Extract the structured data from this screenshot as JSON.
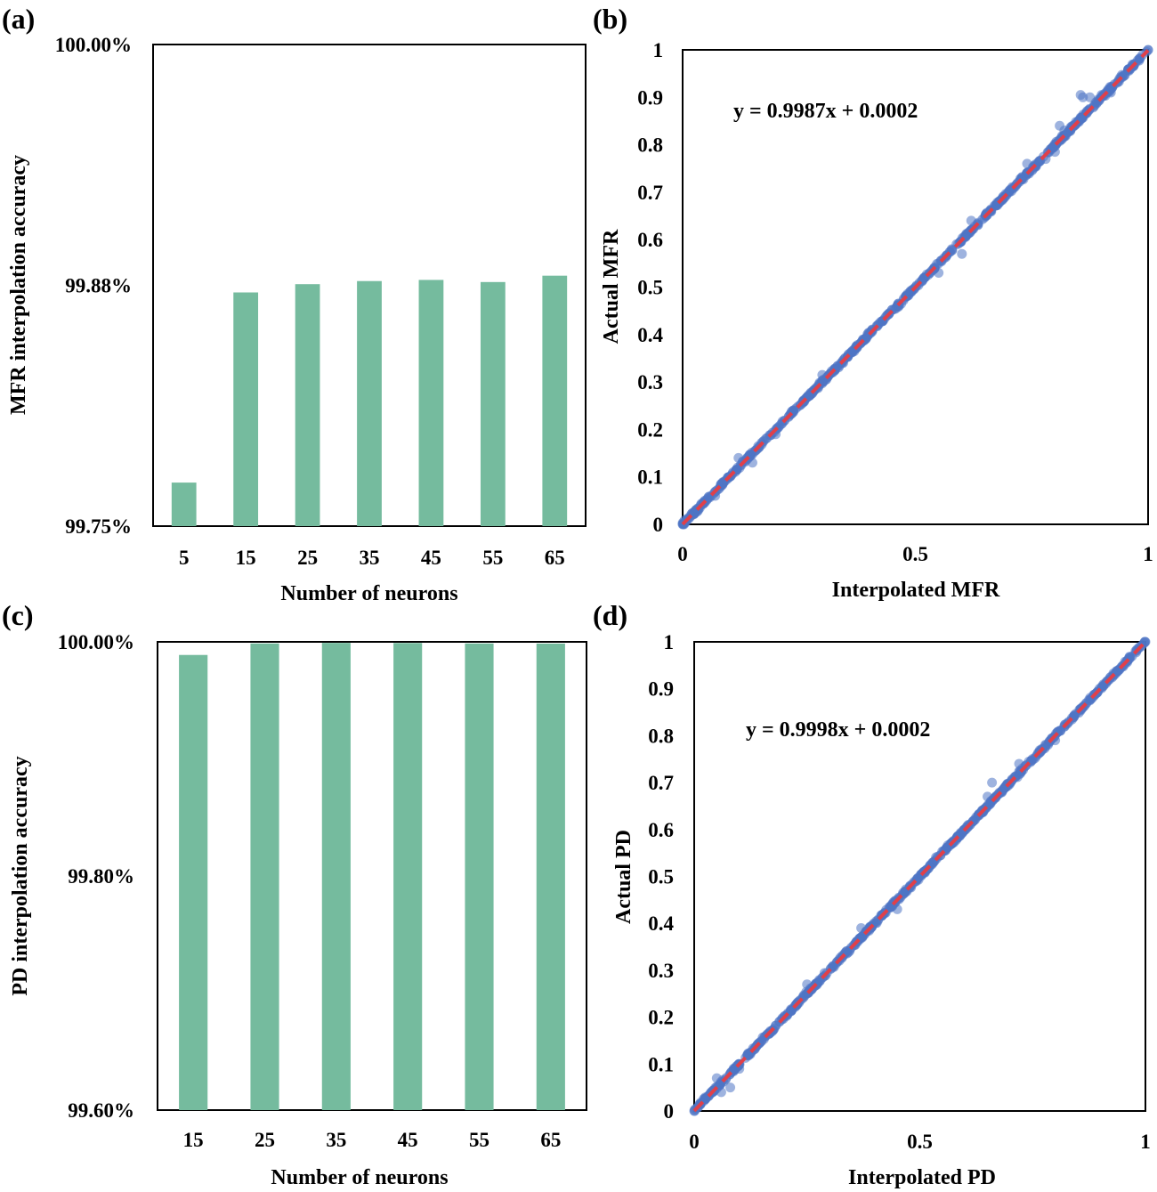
{
  "chart_data": [
    {
      "panel": "(a)",
      "type": "bar",
      "categories": [
        "5",
        "15",
        "25",
        "35",
        "45",
        "55",
        "65"
      ],
      "values": [
        99.7726,
        99.8713,
        99.8756,
        99.8772,
        99.8778,
        99.8767,
        99.88
      ],
      "ylim": [
        99.75,
        100.0
      ],
      "yticks": [
        "99.75%",
        "99.88%",
        "100.00%"
      ],
      "ytick_values": [
        99.75,
        99.875,
        100.0
      ],
      "xlabel": "Number of neurons",
      "ylabel": "MFR interpolation accuracy",
      "color": "#75bb9e"
    },
    {
      "panel": "(b)",
      "type": "scatter",
      "xlabel": "Interpolated MFR",
      "ylabel": "Actual MFR",
      "xlim": [
        0,
        1
      ],
      "ylim": [
        0,
        1
      ],
      "xticks": [
        "0",
        "0.5",
        "1"
      ],
      "xtick_values": [
        0,
        0.5,
        1
      ],
      "yticks": [
        "0",
        "0.1",
        "0.2",
        "0.3",
        "0.4",
        "0.5",
        "0.6",
        "0.7",
        "0.8",
        "0.9",
        "1"
      ],
      "ytick_values": [
        0,
        0.1,
        0.2,
        0.3,
        0.4,
        0.5,
        0.6,
        0.7,
        0.8,
        0.9,
        1
      ],
      "equation": "y = 0.9987x + 0.0002",
      "slope": 0.9987,
      "intercept": 0.0002,
      "n_points": 620,
      "noise": 0.006,
      "outliers": [
        [
          0.855,
          0.905
        ],
        [
          0.86,
          0.9
        ],
        [
          0.875,
          0.9
        ],
        [
          0.9,
          0.905
        ],
        [
          0.92,
          0.91
        ],
        [
          0.82,
          0.83
        ],
        [
          0.81,
          0.84
        ],
        [
          0.78,
          0.77
        ],
        [
          0.8,
          0.785
        ],
        [
          0.72,
          0.72
        ],
        [
          0.74,
          0.76
        ],
        [
          0.6,
          0.57
        ],
        [
          0.62,
          0.64
        ],
        [
          0.55,
          0.53
        ],
        [
          0.3,
          0.315
        ],
        [
          0.2,
          0.19
        ],
        [
          0.12,
          0.14
        ],
        [
          0.15,
          0.13
        ],
        [
          0.07,
          0.06
        ]
      ],
      "point_color": "#4f74c4",
      "line_color": "#e0404a"
    },
    {
      "panel": "(c)",
      "type": "bar",
      "categories": [
        "15",
        "25",
        "35",
        "45",
        "55",
        "65"
      ],
      "values": [
        99.9888,
        99.9986,
        99.9991,
        99.999,
        99.9986,
        99.9985
      ],
      "ylim": [
        99.6,
        100.0
      ],
      "yticks": [
        "99.60%",
        "99.80%",
        "100.00%"
      ],
      "ytick_values": [
        99.6,
        99.8,
        100.0
      ],
      "xlabel": "Number of neurons",
      "ylabel": "PD interpolation accuracy",
      "color": "#75bb9e"
    },
    {
      "panel": "(d)",
      "type": "scatter",
      "xlabel": "Interpolated PD",
      "ylabel": "Actual PD",
      "xlim": [
        0,
        1
      ],
      "ylim": [
        0,
        1
      ],
      "xticks": [
        "0",
        "0.5",
        "1"
      ],
      "xtick_values": [
        0,
        0.5,
        1
      ],
      "yticks": [
        "0",
        "0.1",
        "0.2",
        "0.3",
        "0.4",
        "0.5",
        "0.6",
        "0.7",
        "0.8",
        "0.9",
        "1"
      ],
      "ytick_values": [
        0,
        0.1,
        0.2,
        0.3,
        0.4,
        0.5,
        0.6,
        0.7,
        0.8,
        0.9,
        1
      ],
      "equation": "y = 0.9998x + 0.0002",
      "slope": 0.9998,
      "intercept": 0.0002,
      "n_points": 620,
      "noise": 0.006,
      "outliers": [
        [
          0.08,
          0.05
        ],
        [
          0.06,
          0.04
        ],
        [
          0.05,
          0.07
        ],
        [
          0.1,
          0.09
        ],
        [
          0.25,
          0.27
        ],
        [
          0.37,
          0.39
        ],
        [
          0.45,
          0.43
        ],
        [
          0.65,
          0.67
        ],
        [
          0.66,
          0.7
        ],
        [
          0.72,
          0.74
        ],
        [
          0.8,
          0.79
        ]
      ],
      "point_color": "#4f74c4",
      "line_color": "#e0404a"
    }
  ]
}
